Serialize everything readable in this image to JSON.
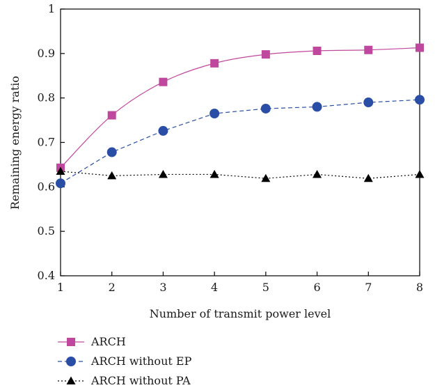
{
  "chart_data": {
    "type": "line",
    "title": "",
    "xlabel": "Number of transmit power level",
    "ylabel": "Remaining energy ratio",
    "x": [
      1,
      2,
      3,
      4,
      5,
      6,
      7,
      8
    ],
    "xlim": [
      1,
      8
    ],
    "ylim": [
      0.4,
      1.0
    ],
    "x_ticks": [
      "1",
      "2",
      "3",
      "4",
      "5",
      "6",
      "7",
      "8"
    ],
    "y_ticks": [
      "0.4",
      "0.5",
      "0.6",
      "0.7",
      "0.8",
      "0.9",
      "1"
    ],
    "grid": false,
    "legend_position": "bottom-left, below plot",
    "series": [
      {
        "name": "ARCH",
        "values": [
          0.643,
          0.761,
          0.836,
          0.878,
          0.898,
          0.906,
          0.908,
          0.913
        ],
        "color": "#c0479e",
        "marker": "square",
        "line_style": "solid"
      },
      {
        "name": "ARCH without EP",
        "values": [
          0.608,
          0.678,
          0.726,
          0.765,
          0.776,
          0.78,
          0.79,
          0.796
        ],
        "color": "#2a4ea6",
        "marker": "circle",
        "line_style": "dashed"
      },
      {
        "name": "ARCH without PA",
        "values": [
          0.635,
          0.625,
          0.628,
          0.628,
          0.619,
          0.628,
          0.619,
          0.628
        ],
        "color": "#000000",
        "marker": "triangle",
        "line_style": "dotted"
      }
    ]
  }
}
